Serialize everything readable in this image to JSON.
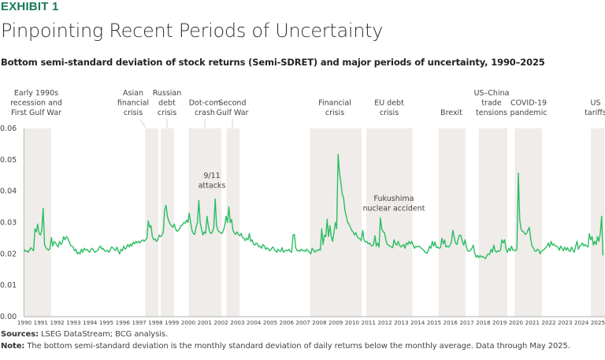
{
  "header": {
    "exhibit": "EXHIBIT 1",
    "title": "Pinpointing Recent Periods of Uncertainty",
    "subtitle": "Bottom semi-standard deviation of stock returns (Semi-SDRET) and major periods of uncertainty, 1990–2025"
  },
  "footer": {
    "sources_label": "Sources:",
    "sources_text": " LSEG DataStream; BCG analysis.",
    "note_label": "Note:",
    "note_text": " The bottom semi-standard deviation is the monthly standard deviation of daily returns below the monthly average. Data through May 2025."
  },
  "colors": {
    "line": "#2cbd63",
    "band": "#efece9",
    "exhibit": "#197a56",
    "axis": "#b0b0b0"
  },
  "chart_data": {
    "type": "line",
    "title": "Bottom semi-standard deviation of stock returns (Semi-SDRET) and major periods of uncertainty, 1990–2025",
    "xlabel": "",
    "ylabel": "",
    "ylim": [
      0,
      0.06
    ],
    "yticks": [
      "0.00",
      "0.01",
      "0.02",
      "0.03",
      "0.04",
      "0.05",
      "0.06"
    ],
    "ytick_values": [
      0,
      0.01,
      0.02,
      0.03,
      0.04,
      0.05,
      0.06
    ],
    "xlim": [
      1990,
      2025.42
    ],
    "xticks": [
      "1990",
      "1991",
      "1992",
      "1993",
      "1994",
      "1995",
      "1996",
      "1997",
      "1998",
      "1999",
      "2000",
      "2001",
      "2002",
      "2003",
      "2004",
      "2005",
      "2006",
      "2007",
      "2008",
      "2009",
      "2010",
      "2011",
      "2012",
      "2013",
      "2014",
      "2015",
      "2016",
      "2017",
      "2018",
      "2019",
      "2020",
      "2021",
      "2022",
      "2023",
      "2024",
      "2025"
    ],
    "grid": false,
    "series": [
      {
        "name": "Semi-SDRET",
        "start": "1990-01",
        "frequency": "monthly",
        "values_by_year": {
          "1990": [
            0.0215,
            0.0208,
            0.021,
            0.0205,
            0.0212,
            0.022,
            0.0215,
            0.021,
            0.028,
            0.027,
            0.0295,
            0.0265
          ],
          "1991": [
            0.026,
            0.0275,
            0.0345,
            0.023,
            0.022,
            0.0215,
            0.0212,
            0.0218,
            0.0252,
            0.0225,
            0.024,
            0.0235
          ],
          "1992": [
            0.0228,
            0.0222,
            0.024,
            0.023,
            0.0235,
            0.0255,
            0.0245,
            0.0255,
            0.025,
            0.024,
            0.0228,
            0.0225
          ],
          "1993": [
            0.0222,
            0.021,
            0.0215,
            0.02,
            0.0205,
            0.02,
            0.0215,
            0.0205,
            0.0218,
            0.0212,
            0.0215,
            0.021
          ],
          "1994": [
            0.0205,
            0.0215,
            0.0218,
            0.021,
            0.0205,
            0.0208,
            0.0212,
            0.022,
            0.0225,
            0.0215,
            0.0218,
            0.021
          ],
          "1995": [
            0.0208,
            0.0212,
            0.0205,
            0.021,
            0.0222,
            0.022,
            0.0215,
            0.021,
            0.0222,
            0.021,
            0.02,
            0.0215
          ],
          "1996": [
            0.021,
            0.0225,
            0.0215,
            0.022,
            0.023,
            0.0222,
            0.0232,
            0.0225,
            0.0238,
            0.0232,
            0.024,
            0.0235
          ],
          "1997": [
            0.024,
            0.0235,
            0.0242,
            0.0245,
            0.024,
            0.0245,
            0.025,
            0.0305,
            0.0285,
            0.029,
            0.0255,
            0.0245
          ],
          "1998": [
            0.0248,
            0.024,
            0.0245,
            0.026,
            0.0255,
            0.0258,
            0.027,
            0.034,
            0.0355,
            0.032,
            0.0305,
            0.0295
          ],
          "1999": [
            0.029,
            0.0285,
            0.0295,
            0.028,
            0.0272,
            0.0275,
            0.0282,
            0.029,
            0.0292,
            0.03,
            0.0298,
            0.0308
          ],
          "2000": [
            0.03,
            0.033,
            0.03,
            0.0275,
            0.0265,
            0.0262,
            0.0285,
            0.03,
            0.037,
            0.03,
            0.028,
            0.026
          ],
          "2001": [
            0.027,
            0.0265,
            0.032,
            0.029,
            0.027,
            0.0265,
            0.027,
            0.0285,
            0.0375,
            0.029,
            0.0275,
            0.027
          ],
          "2002": [
            0.0268,
            0.0265,
            0.0275,
            0.029,
            0.032,
            0.03,
            0.035,
            0.03,
            0.031,
            0.0275,
            0.0268,
            0.0262
          ],
          "2003": [
            0.027,
            0.0262,
            0.0258,
            0.0265,
            0.0252,
            0.025,
            0.0242,
            0.025,
            0.0245,
            0.0265,
            0.024,
            0.0245
          ],
          "2004": [
            0.0232,
            0.0228,
            0.0235,
            0.0232,
            0.0222,
            0.0225,
            0.0218,
            0.023,
            0.0225,
            0.0215,
            0.022,
            0.0215
          ],
          "2005": [
            0.021,
            0.0215,
            0.0222,
            0.0218,
            0.021,
            0.0205,
            0.0215,
            0.021,
            0.0208,
            0.022,
            0.0205,
            0.021
          ],
          "2006": [
            0.0212,
            0.021,
            0.0215,
            0.0208,
            0.0205,
            0.026,
            0.0262,
            0.022,
            0.021,
            0.0212,
            0.0208,
            0.0215
          ],
          "2007": [
            0.021,
            0.0212,
            0.0208,
            0.0215,
            0.021,
            0.0205,
            0.02,
            0.0218,
            0.0212,
            0.0205,
            0.0212,
            0.021
          ],
          "2008": [
            0.0215,
            0.0212,
            0.028,
            0.023,
            0.026,
            0.0255,
            0.031,
            0.0255,
            0.029,
            0.0255,
            0.024,
            0.027
          ],
          "2009": [
            0.03,
            0.028,
            0.0517,
            0.046,
            0.043,
            0.039,
            0.038,
            0.034,
            0.032,
            0.03,
            0.0295,
            0.0285
          ],
          "2010": [
            0.0275,
            0.027,
            0.026,
            0.0268,
            0.0255,
            0.025,
            0.0248,
            0.0242,
            0.0275,
            0.0245,
            0.0238,
            0.024
          ],
          "2011": [
            0.0232,
            0.0235,
            0.0228,
            0.0225,
            0.023,
            0.0258,
            0.0225,
            0.0235,
            0.0222,
            0.0315,
            0.028,
            0.027
          ],
          "2012": [
            0.0268,
            0.0245,
            0.023,
            0.0228,
            0.0225,
            0.0222,
            0.022,
            0.0245,
            0.0232,
            0.0228,
            0.024,
            0.0228
          ],
          "2013": [
            0.0222,
            0.0225,
            0.023,
            0.0218,
            0.0235,
            0.023,
            0.024,
            0.0232,
            0.024,
            0.0228,
            0.0218,
            0.0225
          ],
          "2014": [
            0.0222,
            0.0225,
            0.0222,
            0.0218,
            0.0215,
            0.021,
            0.0205,
            0.0202,
            0.021,
            0.0225,
            0.0218,
            0.024
          ],
          "2015": [
            0.0225,
            0.0238,
            0.022,
            0.0222,
            0.0218,
            0.022,
            0.025,
            0.0232,
            0.0245,
            0.0222,
            0.0225,
            0.0222
          ],
          "2016": [
            0.0228,
            0.0238,
            0.0275,
            0.0255,
            0.0235,
            0.023,
            0.0248,
            0.026,
            0.0258,
            0.024,
            0.0228,
            0.0245
          ],
          "2017": [
            0.0222,
            0.021,
            0.0208,
            0.0212,
            0.0218,
            0.0228,
            0.0205,
            0.019,
            0.0195,
            0.0188,
            0.0195,
            0.019
          ],
          "2018": [
            0.0192,
            0.0188,
            0.0185,
            0.0195,
            0.02,
            0.0198,
            0.0215,
            0.0205,
            0.0228,
            0.021,
            0.0205,
            0.021
          ],
          "2019": [
            0.0208,
            0.0212,
            0.0245,
            0.0235,
            0.0245,
            0.0215,
            0.0205,
            0.0218,
            0.021,
            0.0225,
            0.0212,
            0.0212
          ],
          "2020": [
            0.021,
            0.0215,
            0.0457,
            0.031,
            0.028,
            0.0272,
            0.027,
            0.0262,
            0.0265,
            0.0275,
            0.0285,
            0.025
          ],
          "2021": [
            0.0225,
            0.022,
            0.021,
            0.0208,
            0.0215,
            0.0212,
            0.02,
            0.021,
            0.0212,
            0.0215,
            0.022,
            0.0225
          ],
          "2022": [
            0.0235,
            0.0222,
            0.024,
            0.0228,
            0.0232,
            0.0225,
            0.0225,
            0.0222,
            0.0212,
            0.0225,
            0.0218,
            0.021
          ],
          "2023": [
            0.0222,
            0.0212,
            0.022,
            0.021,
            0.0208,
            0.0222,
            0.0212,
            0.0205,
            0.0225,
            0.024,
            0.0215,
            0.0225
          ],
          "2024": [
            0.0228,
            0.0235,
            0.0225,
            0.023,
            0.0225,
            0.0222,
            0.0265,
            0.0245,
            0.0255,
            0.0228,
            0.024,
            0.023
          ],
          "2025": [
            0.0255,
            0.024,
            0.0265,
            0.032,
            0.0195
          ]
        }
      }
    ],
    "periods": [
      {
        "label": "Early 1990s recession and First Gulf War",
        "lines": [
          "Early 1990s",
          "recession and",
          "First Gulf War"
        ],
        "start": 1990.05,
        "end": 1991.65
      },
      {
        "label": "Asian financial crisis",
        "lines": [
          "Asian",
          "financial",
          "crisis"
        ],
        "start": 1997.4,
        "end": 1998.2
      },
      {
        "label": "Russian debt crisis",
        "lines": [
          "Russian",
          "debt",
          "crisis"
        ],
        "start": 1998.35,
        "end": 1999.15
      },
      {
        "label": "Dot-com crash",
        "lines": [
          "Dot-com",
          "crash"
        ],
        "start": 2000.05,
        "end": 2002.05
      },
      {
        "label": "Second Gulf War",
        "lines": [
          "Second",
          "Gulf War"
        ],
        "start": 2002.35,
        "end": 2003.15
      },
      {
        "label": "Financial crisis",
        "lines": [
          "Financial",
          "crisis"
        ],
        "start": 2007.45,
        "end": 2010.6
      },
      {
        "label": "EU debt crisis",
        "lines": [
          "EU debt",
          "crisis"
        ],
        "start": 2010.9,
        "end": 2013.7
      },
      {
        "label": "Brexit",
        "lines": [
          "Brexit"
        ],
        "start": 2015.3,
        "end": 2016.95
      },
      {
        "label": "US–China trade tensions",
        "lines": [
          "US–China",
          "trade",
          "tensions"
        ],
        "start": 2017.75,
        "end": 2019.5
      },
      {
        "label": "COVID-19 pandemic",
        "lines": [
          "COVID-19",
          "pandemic"
        ],
        "start": 2019.95,
        "end": 2021.6
      },
      {
        "label": "US tariffs",
        "lines": [
          "US",
          "tariffs"
        ],
        "start": 2024.6,
        "end": 2025.42
      }
    ],
    "annotations": [
      {
        "label": "9/11 attacks",
        "lines": [
          "9/11",
          "attacks"
        ],
        "x": 2001.7,
        "y": 0.0375
      },
      {
        "label": "Fukushima nuclear accident",
        "lines": [
          "Fukushima",
          "nuclear accident"
        ],
        "x": 2011.2,
        "y": 0.0315
      }
    ]
  }
}
